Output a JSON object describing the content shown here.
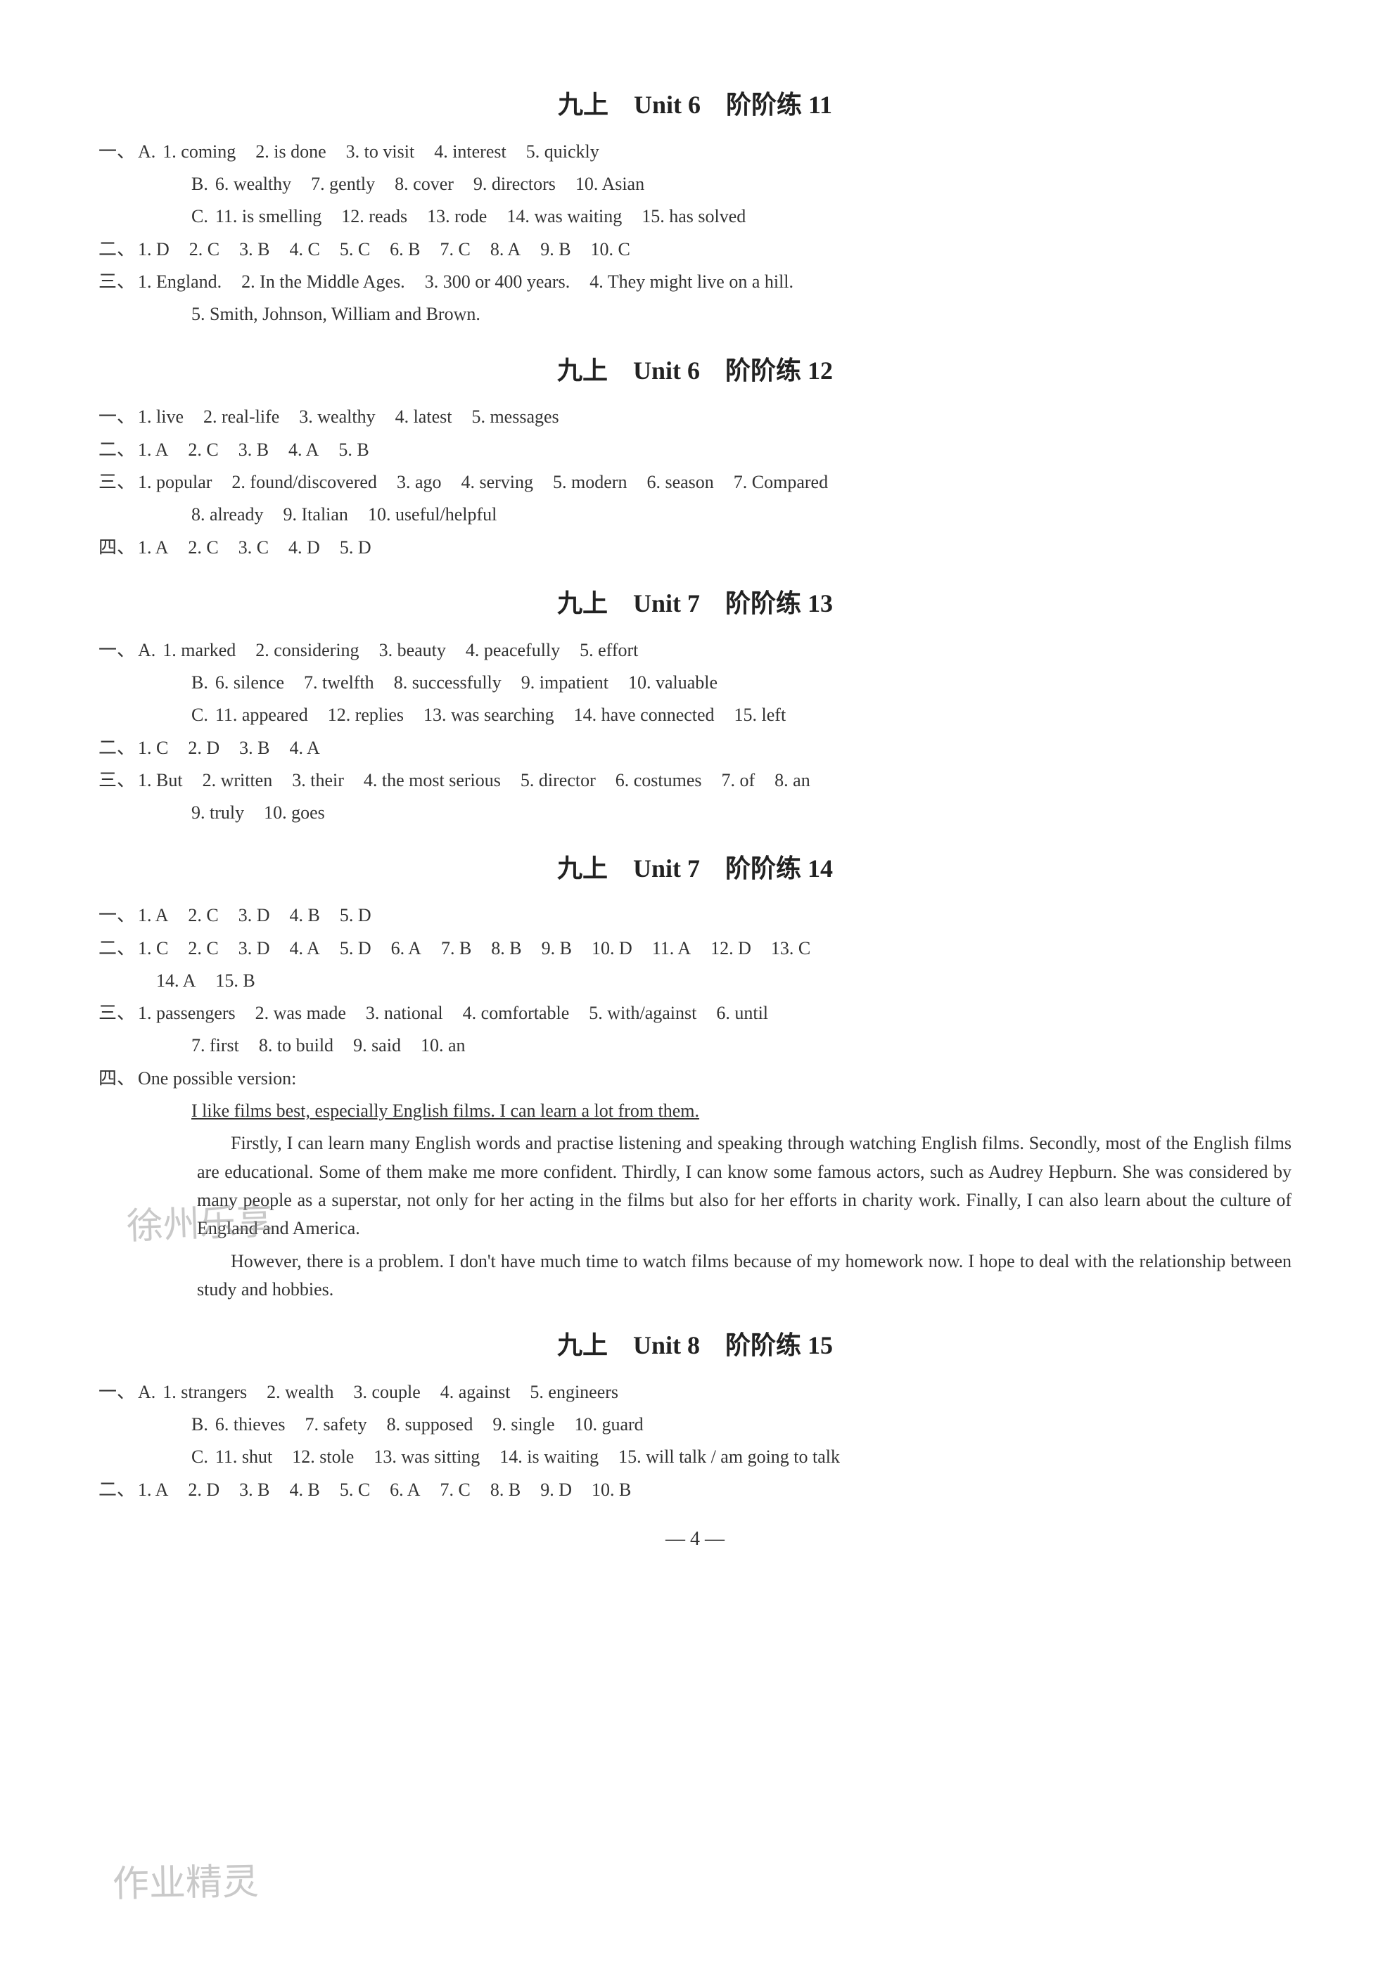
{
  "page_number": "— 4 —",
  "colors": {
    "background": "#ffffff",
    "text": "#333333",
    "title": "#222222",
    "watermark": "#888888"
  },
  "typography": {
    "body_size_pt": 18,
    "title_size_pt": 26,
    "body_family": "Times New Roman / SimSun",
    "line_height": 1.55
  },
  "watermarks": [
    "徐州乐享",
    "作业精灵"
  ],
  "sections": [
    {
      "title": "九上　Unit 6　阶阶练 11",
      "groups": [
        {
          "marker": "一、",
          "lines": [
            {
              "prefix": "A.",
              "items": [
                "1. coming",
                "2. is done",
                "3. to visit",
                "4. interest",
                "5. quickly"
              ]
            },
            {
              "prefix": "B.",
              "items": [
                "6. wealthy",
                "7. gently",
                "8. cover",
                "9. directors",
                "10. Asian"
              ],
              "indent": true
            },
            {
              "prefix": "C.",
              "items": [
                "11. is smelling",
                "12. reads",
                "13. rode",
                "14. was waiting",
                "15. has solved"
              ],
              "indent": true
            }
          ]
        },
        {
          "marker": "二、",
          "lines": [
            {
              "items": [
                "1. D",
                "2. C",
                "3. B",
                "4. C",
                "5. C",
                "6. B",
                "7. C",
                "8. A",
                "9. B",
                "10. C"
              ]
            }
          ]
        },
        {
          "marker": "三、",
          "lines": [
            {
              "items": [
                "1. England.",
                "2. In the Middle Ages.",
                "3. 300 or 400 years.",
                "4. They might live on a hill."
              ]
            },
            {
              "items": [
                "5. Smith, Johnson, William and Brown."
              ],
              "indent": true
            }
          ]
        }
      ]
    },
    {
      "title": "九上　Unit 6　阶阶练 12",
      "groups": [
        {
          "marker": "一、",
          "lines": [
            {
              "items": [
                "1. live",
                "2. real-life",
                "3. wealthy",
                "4. latest",
                "5. messages"
              ]
            }
          ]
        },
        {
          "marker": "二、",
          "lines": [
            {
              "items": [
                "1. A",
                "2. C",
                "3. B",
                "4. A",
                "5. B"
              ]
            }
          ]
        },
        {
          "marker": "三、",
          "lines": [
            {
              "items": [
                "1. popular",
                "2. found/discovered",
                "3. ago",
                "4. serving",
                "5. modern",
                "6. season",
                "7. Compared"
              ]
            },
            {
              "items": [
                "8. already",
                "9. Italian",
                "10. useful/helpful"
              ],
              "indent": true
            }
          ]
        },
        {
          "marker": "四、",
          "lines": [
            {
              "items": [
                "1. A",
                "2. C",
                "3. C",
                "4. D",
                "5. D"
              ]
            }
          ]
        }
      ]
    },
    {
      "title": "九上　Unit 7　阶阶练 13",
      "groups": [
        {
          "marker": "一、",
          "lines": [
            {
              "prefix": "A.",
              "items": [
                "1. marked",
                "2. considering",
                "3. beauty",
                "4. peacefully",
                "5. effort"
              ]
            },
            {
              "prefix": "B.",
              "items": [
                "6. silence",
                "7. twelfth",
                "8. successfully",
                "9. impatient",
                "10. valuable"
              ],
              "indent": true
            },
            {
              "prefix": "C.",
              "items": [
                "11. appeared",
                "12. replies",
                "13. was searching",
                "14. have connected",
                "15. left"
              ],
              "indent": true
            }
          ]
        },
        {
          "marker": "二、",
          "lines": [
            {
              "items": [
                "1. C",
                "2. D",
                "3. B",
                "4. A"
              ]
            }
          ]
        },
        {
          "marker": "三、",
          "lines": [
            {
              "items": [
                "1. But",
                "2. written",
                "3. their",
                "4. the most serious",
                "5. director",
                "6. costumes",
                "7. of",
                "8. an"
              ]
            },
            {
              "items": [
                "9. truly",
                "10. goes"
              ],
              "indent": true
            }
          ]
        }
      ]
    },
    {
      "title": "九上　Unit 7　阶阶练 14",
      "groups": [
        {
          "marker": "一、",
          "lines": [
            {
              "items": [
                "1. A",
                "2. C",
                "3. D",
                "4. B",
                "5. D"
              ]
            }
          ]
        },
        {
          "marker": "二、",
          "lines": [
            {
              "items": [
                "1. C",
                "2. C",
                "3. D",
                "4. A",
                "5. D",
                "6. A",
                "7. B",
                "8. B",
                "9. B",
                "10. D",
                "11. A",
                "12. D",
                "13. C"
              ]
            },
            {
              "items": [
                "14. A",
                "15. B"
              ],
              "indent2": true
            }
          ]
        },
        {
          "marker": "三、",
          "lines": [
            {
              "items": [
                "1. passengers",
                "2. was made",
                "3. national",
                "4. comfortable",
                "5. with/against",
                "6. until"
              ]
            },
            {
              "items": [
                "7. first",
                "8. to build",
                "9. said",
                "10. an"
              ],
              "indent": true
            }
          ]
        },
        {
          "marker": "四、",
          "essay": {
            "intro": "One possible version:",
            "underline": "I like films best, especially English films. I can learn a lot from them.",
            "paras": [
              "Firstly, I can learn many English words and practise listening and speaking through watching English films. Secondly, most of the English films are educational. Some of them make me more confident. Thirdly, I can know some famous actors, such as Audrey Hepburn. She was considered by many people as a superstar, not only for her acting in the films but also for her efforts in charity work. Finally, I can also learn about the culture of England and America.",
              "However, there is a problem. I don't have much time to watch films because of my homework now. I hope to deal with the relationship between study and hobbies."
            ]
          }
        }
      ]
    },
    {
      "title": "九上　Unit 8　阶阶练 15",
      "groups": [
        {
          "marker": "一、",
          "lines": [
            {
              "prefix": "A.",
              "items": [
                "1. strangers",
                "2. wealth",
                "3. couple",
                "4. against",
                "5. engineers"
              ]
            },
            {
              "prefix": "B.",
              "items": [
                "6. thieves",
                "7. safety",
                "8. supposed",
                "9. single",
                "10. guard"
              ],
              "indent": true
            },
            {
              "prefix": "C.",
              "items": [
                "11. shut",
                "12. stole",
                "13. was sitting",
                "14. is waiting",
                "15. will talk / am going to talk"
              ],
              "indent": true
            }
          ]
        },
        {
          "marker": "二、",
          "lines": [
            {
              "items": [
                "1. A",
                "2. D",
                "3. B",
                "4. B",
                "5. C",
                "6. A",
                "7. C",
                "8. B",
                "9. D",
                "10. B"
              ]
            }
          ]
        }
      ]
    }
  ]
}
